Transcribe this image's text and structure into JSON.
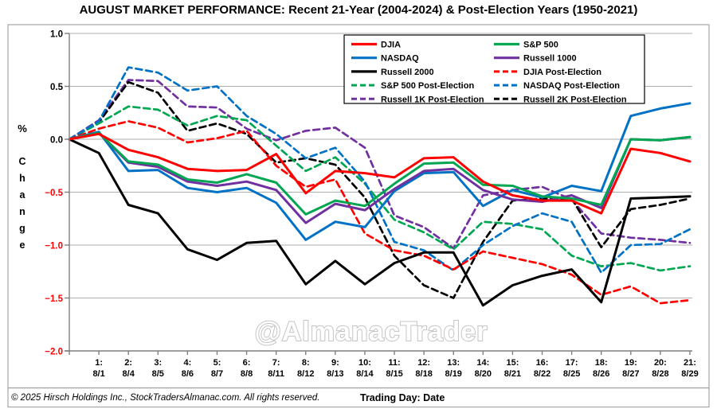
{
  "title": "AUGUST MARKET PERFORMANCE: Recent 21-Year (2004-2024) & Post-Election Years (1950-2021)",
  "watermark": "@AlmanacTrader",
  "footer": {
    "copyright": "© 2025 Hirsch Holdings Inc., StockTradersAlmanac.com. All rights reserved.",
    "axis_label": "Trading Day: Date"
  },
  "chart_data": {
    "type": "line",
    "title": "AUGUST MARKET PERFORMANCE: Recent 21-Year (2004-2024) & Post-Election Years (1950-2021)",
    "ylabel": "% Change",
    "xlabel": "Trading Day: Date",
    "ylim": [
      -2.0,
      1.0
    ],
    "grid": true,
    "legend_position": "top-right",
    "baseline_start_value": 0.0,
    "y_ticks": [
      {
        "label": "1.0",
        "value": 1.0,
        "color": "#000000"
      },
      {
        "label": "0.5",
        "value": 0.5,
        "color": "#000000"
      },
      {
        "label": "0.0",
        "value": 0.0,
        "color": "#000000"
      },
      {
        "label": "−0.5",
        "value": -0.5,
        "color": "#FF0000"
      },
      {
        "label": "−1.0",
        "value": -1.0,
        "color": "#FF0000"
      },
      {
        "label": "−1.5",
        "value": -1.5,
        "color": "#FF0000"
      },
      {
        "label": "−2.0",
        "value": -2.0,
        "color": "#FF0000"
      }
    ],
    "categories": [
      {
        "num": "1:",
        "date": "8/1"
      },
      {
        "num": "2:",
        "date": "8/4"
      },
      {
        "num": "3:",
        "date": "8/5"
      },
      {
        "num": "4:",
        "date": "8/6"
      },
      {
        "num": "5:",
        "date": "8/7"
      },
      {
        "num": "6:",
        "date": "8/8"
      },
      {
        "num": "7:",
        "date": "8/11"
      },
      {
        "num": "8:",
        "date": "8/12"
      },
      {
        "num": "9:",
        "date": "8/13"
      },
      {
        "num": "10:",
        "date": "8/14"
      },
      {
        "num": "11:",
        "date": "8/15"
      },
      {
        "num": "12:",
        "date": "8/18"
      },
      {
        "num": "13:",
        "date": "8/19"
      },
      {
        "num": "14:",
        "date": "8/20"
      },
      {
        "num": "15:",
        "date": "8/21"
      },
      {
        "num": "16:",
        "date": "8/22"
      },
      {
        "num": "17:",
        "date": "8/25"
      },
      {
        "num": "18:",
        "date": "8/26"
      },
      {
        "num": "19:",
        "date": "8/27"
      },
      {
        "num": "20:",
        "date": "8/28"
      },
      {
        "num": "21:",
        "date": "8/29"
      }
    ],
    "series": [
      {
        "name": "Russell 1K Post-Election",
        "color": "#7030A0",
        "style": "dashed",
        "values": [
          0.18,
          0.56,
          0.55,
          0.31,
          0.3,
          0.1,
          -0.01,
          0.08,
          0.11,
          -0.08,
          -0.72,
          -0.83,
          -1.03,
          -0.53,
          -0.48,
          -0.45,
          -0.57,
          -0.89,
          -0.93,
          -0.95,
          -0.98
        ]
      },
      {
        "name": "Russell 2K Post-Election",
        "color": "#000000",
        "style": "dashed",
        "values": [
          0.16,
          0.54,
          0.44,
          0.08,
          0.15,
          0.05,
          -0.22,
          -0.18,
          -0.24,
          -0.55,
          -1.1,
          -1.38,
          -1.5,
          -0.97,
          -0.58,
          -0.56,
          -0.56,
          -1.02,
          -0.66,
          -0.62,
          -0.56
        ]
      },
      {
        "name": "S&P 500 Post-Election",
        "color": "#00A651",
        "style": "dashed",
        "values": [
          0.15,
          0.31,
          0.28,
          0.13,
          0.22,
          0.18,
          -0.06,
          -0.3,
          -0.17,
          -0.42,
          -0.76,
          -0.88,
          -1.04,
          -0.78,
          -0.8,
          -0.85,
          -1.1,
          -1.2,
          -1.17,
          -1.24,
          -1.2
        ]
      },
      {
        "name": "NASDAQ Post-Election",
        "color": "#0072C6",
        "style": "dashed",
        "values": [
          0.17,
          0.68,
          0.63,
          0.46,
          0.5,
          0.22,
          0.05,
          -0.18,
          -0.08,
          -0.4,
          -0.97,
          -1.05,
          -1.24,
          -1.0,
          -0.82,
          -0.7,
          -0.78,
          -1.26,
          -1.0,
          -0.99,
          -0.85
        ]
      },
      {
        "name": "DJIA Post-Election",
        "color": "#FF0000",
        "style": "dashed",
        "values": [
          0.1,
          0.17,
          0.11,
          -0.03,
          0.01,
          0.08,
          -0.25,
          -0.45,
          -0.38,
          -0.89,
          -1.05,
          -1.1,
          -1.23,
          -1.06,
          -1.12,
          -1.18,
          -1.28,
          -1.47,
          -1.39,
          -1.55,
          -1.52
        ]
      },
      {
        "name": "Russell 2000",
        "color": "#000000",
        "style": "solid",
        "values": [
          -0.13,
          -0.62,
          -0.7,
          -1.04,
          -1.14,
          -0.98,
          -0.96,
          -1.37,
          -1.15,
          -1.37,
          -1.17,
          -1.07,
          -1.07,
          -1.57,
          -1.38,
          -1.29,
          -1.23,
          -1.54,
          -0.56,
          -0.55,
          -0.54
        ]
      },
      {
        "name": "NASDAQ",
        "color": "#0072C6",
        "style": "solid",
        "values": [
          0.07,
          -0.3,
          -0.29,
          -0.46,
          -0.5,
          -0.46,
          -0.6,
          -0.95,
          -0.78,
          -0.83,
          -0.49,
          -0.32,
          -0.31,
          -0.63,
          -0.48,
          -0.55,
          -0.44,
          -0.49,
          0.22,
          0.29,
          0.34
        ]
      },
      {
        "name": "Russell 1000",
        "color": "#7030A0",
        "style": "solid",
        "values": [
          0.06,
          -0.22,
          -0.26,
          -0.4,
          -0.44,
          -0.4,
          -0.48,
          -0.79,
          -0.61,
          -0.67,
          -0.47,
          -0.3,
          -0.28,
          -0.48,
          -0.57,
          -0.59,
          -0.53,
          -0.65,
          0.0,
          -0.01,
          0.02
        ]
      },
      {
        "name": "S&P 500",
        "color": "#00A651",
        "style": "solid",
        "values": [
          0.06,
          -0.21,
          -0.24,
          -0.38,
          -0.41,
          -0.33,
          -0.41,
          -0.71,
          -0.58,
          -0.63,
          -0.42,
          -0.23,
          -0.22,
          -0.43,
          -0.44,
          -0.54,
          -0.56,
          -0.62,
          0.0,
          -0.01,
          0.02
        ]
      },
      {
        "name": "DJIA",
        "color": "#FF0000",
        "style": "solid",
        "values": [
          0.05,
          -0.1,
          -0.17,
          -0.28,
          -0.3,
          -0.29,
          -0.14,
          -0.51,
          -0.3,
          -0.32,
          -0.36,
          -0.18,
          -0.17,
          -0.4,
          -0.53,
          -0.58,
          -0.58,
          -0.7,
          -0.09,
          -0.13,
          -0.21
        ]
      }
    ],
    "legend_rows": [
      [
        "DJIA",
        "S&P 500"
      ],
      [
        "NASDAQ",
        "Russell 1000"
      ],
      [
        "Russell 2000",
        "DJIA Post-Election"
      ],
      [
        "S&P 500 Post-Election",
        "NASDAQ Post-Election"
      ],
      [
        "Russell 1K Post-Election",
        "Russell 2K Post-Election"
      ]
    ]
  }
}
